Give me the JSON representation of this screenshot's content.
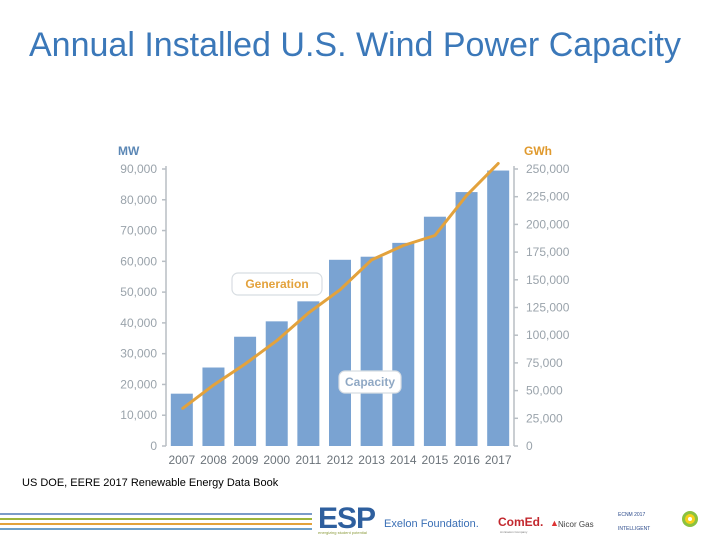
{
  "slide": {
    "title": "Annual Installed U.S. Wind Power Capacity",
    "source": "US DOE, EERE 2017  Renewable Energy Data Book"
  },
  "footer": {
    "esp": "ESP",
    "esp_sub": "energizing student potential",
    "exelon": "Exelon Foundation.",
    "comed": "ComEd.",
    "comed_sub": "An Exelon Company",
    "nicor": "Nicor Gas",
    "small1": "ECNM 2017",
    "small2": "INTELLIGENT"
  },
  "colors": {
    "title": "#3b78b9",
    "bar": "#7aa3d2",
    "line": "#e3a23c",
    "axis_label": "#9aa3ab",
    "left_unit": "#5b87b5",
    "right_unit": "#e09a2e"
  },
  "chart_data": {
    "type": "bar",
    "categories": [
      "2007",
      "2008",
      "2009",
      "2000",
      "2011",
      "2012",
      "2013",
      "2014",
      "2015",
      "2016",
      "2017"
    ],
    "series": [
      {
        "name": "Capacity",
        "type": "bar",
        "axis": "left",
        "values": [
          17000,
          25500,
          35500,
          40500,
          47000,
          60500,
          61500,
          66000,
          74500,
          82500,
          89500
        ]
      },
      {
        "name": "Generation",
        "type": "line",
        "axis": "right",
        "values": [
          34000,
          55000,
          74000,
          95000,
          120000,
          141000,
          168000,
          181000,
          190000,
          226000,
          255000
        ]
      }
    ],
    "left_axis": {
      "label": "MW",
      "min": 0,
      "max": 90000,
      "ticks": [
        "0",
        "10,000",
        "20,000",
        "30,000",
        "40,000",
        "50,000",
        "60,000",
        "70,000",
        "80,000",
        "90,000"
      ]
    },
    "right_axis": {
      "label": "GWh",
      "min": 0,
      "max": 250000,
      "ticks": [
        "0",
        "25,000",
        "50,000",
        "75,000",
        "100,000",
        "125,000",
        "150,000",
        "175,000",
        "200,000",
        "225,000",
        "250,000"
      ]
    },
    "annotations": [
      "Generation",
      "Capacity"
    ]
  }
}
